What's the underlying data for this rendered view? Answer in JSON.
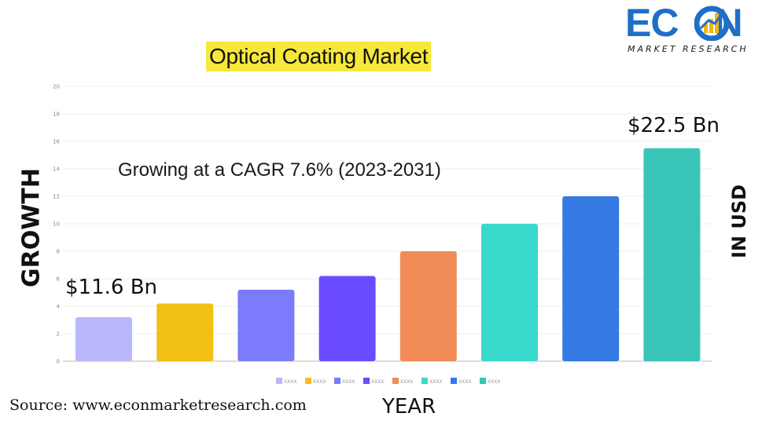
{
  "title": "Optical Coating Market",
  "logo": {
    "word_left": "EC",
    "word_right": "N",
    "subtitle": "MARKET RESEARCH"
  },
  "left_label": "GROWTH",
  "right_label": "IN USD",
  "x_axis_label": "YEAR",
  "source": "Source: www.econmarketresearch.com",
  "chart_data": {
    "type": "bar",
    "categories": [
      "XXXX",
      "XXXX",
      "XXXX",
      "XXXX",
      "XXXX",
      "XXXX",
      "XXXX",
      "XXXX"
    ],
    "values": [
      3.2,
      4.2,
      5.2,
      6.2,
      8,
      10,
      12,
      15.5
    ],
    "colors": [
      "#b8b8fb",
      "#f2c014",
      "#7b7bfc",
      "#6b4bff",
      "#f18c59",
      "#3ad9cc",
      "#3579e3",
      "#38c5b8"
    ],
    "ylim": [
      0,
      20
    ],
    "yticks": [
      "0",
      "2",
      "4",
      "6",
      "8",
      "10",
      "12",
      "14",
      "16",
      "18",
      "20"
    ],
    "grid": true,
    "legend": "bottom",
    "annotations": {
      "cagr": "Growing at a CAGR 7.6% (2023-2031)",
      "start_value": "$11.6 Bn",
      "end_value": "$22.5 Bn"
    }
  }
}
